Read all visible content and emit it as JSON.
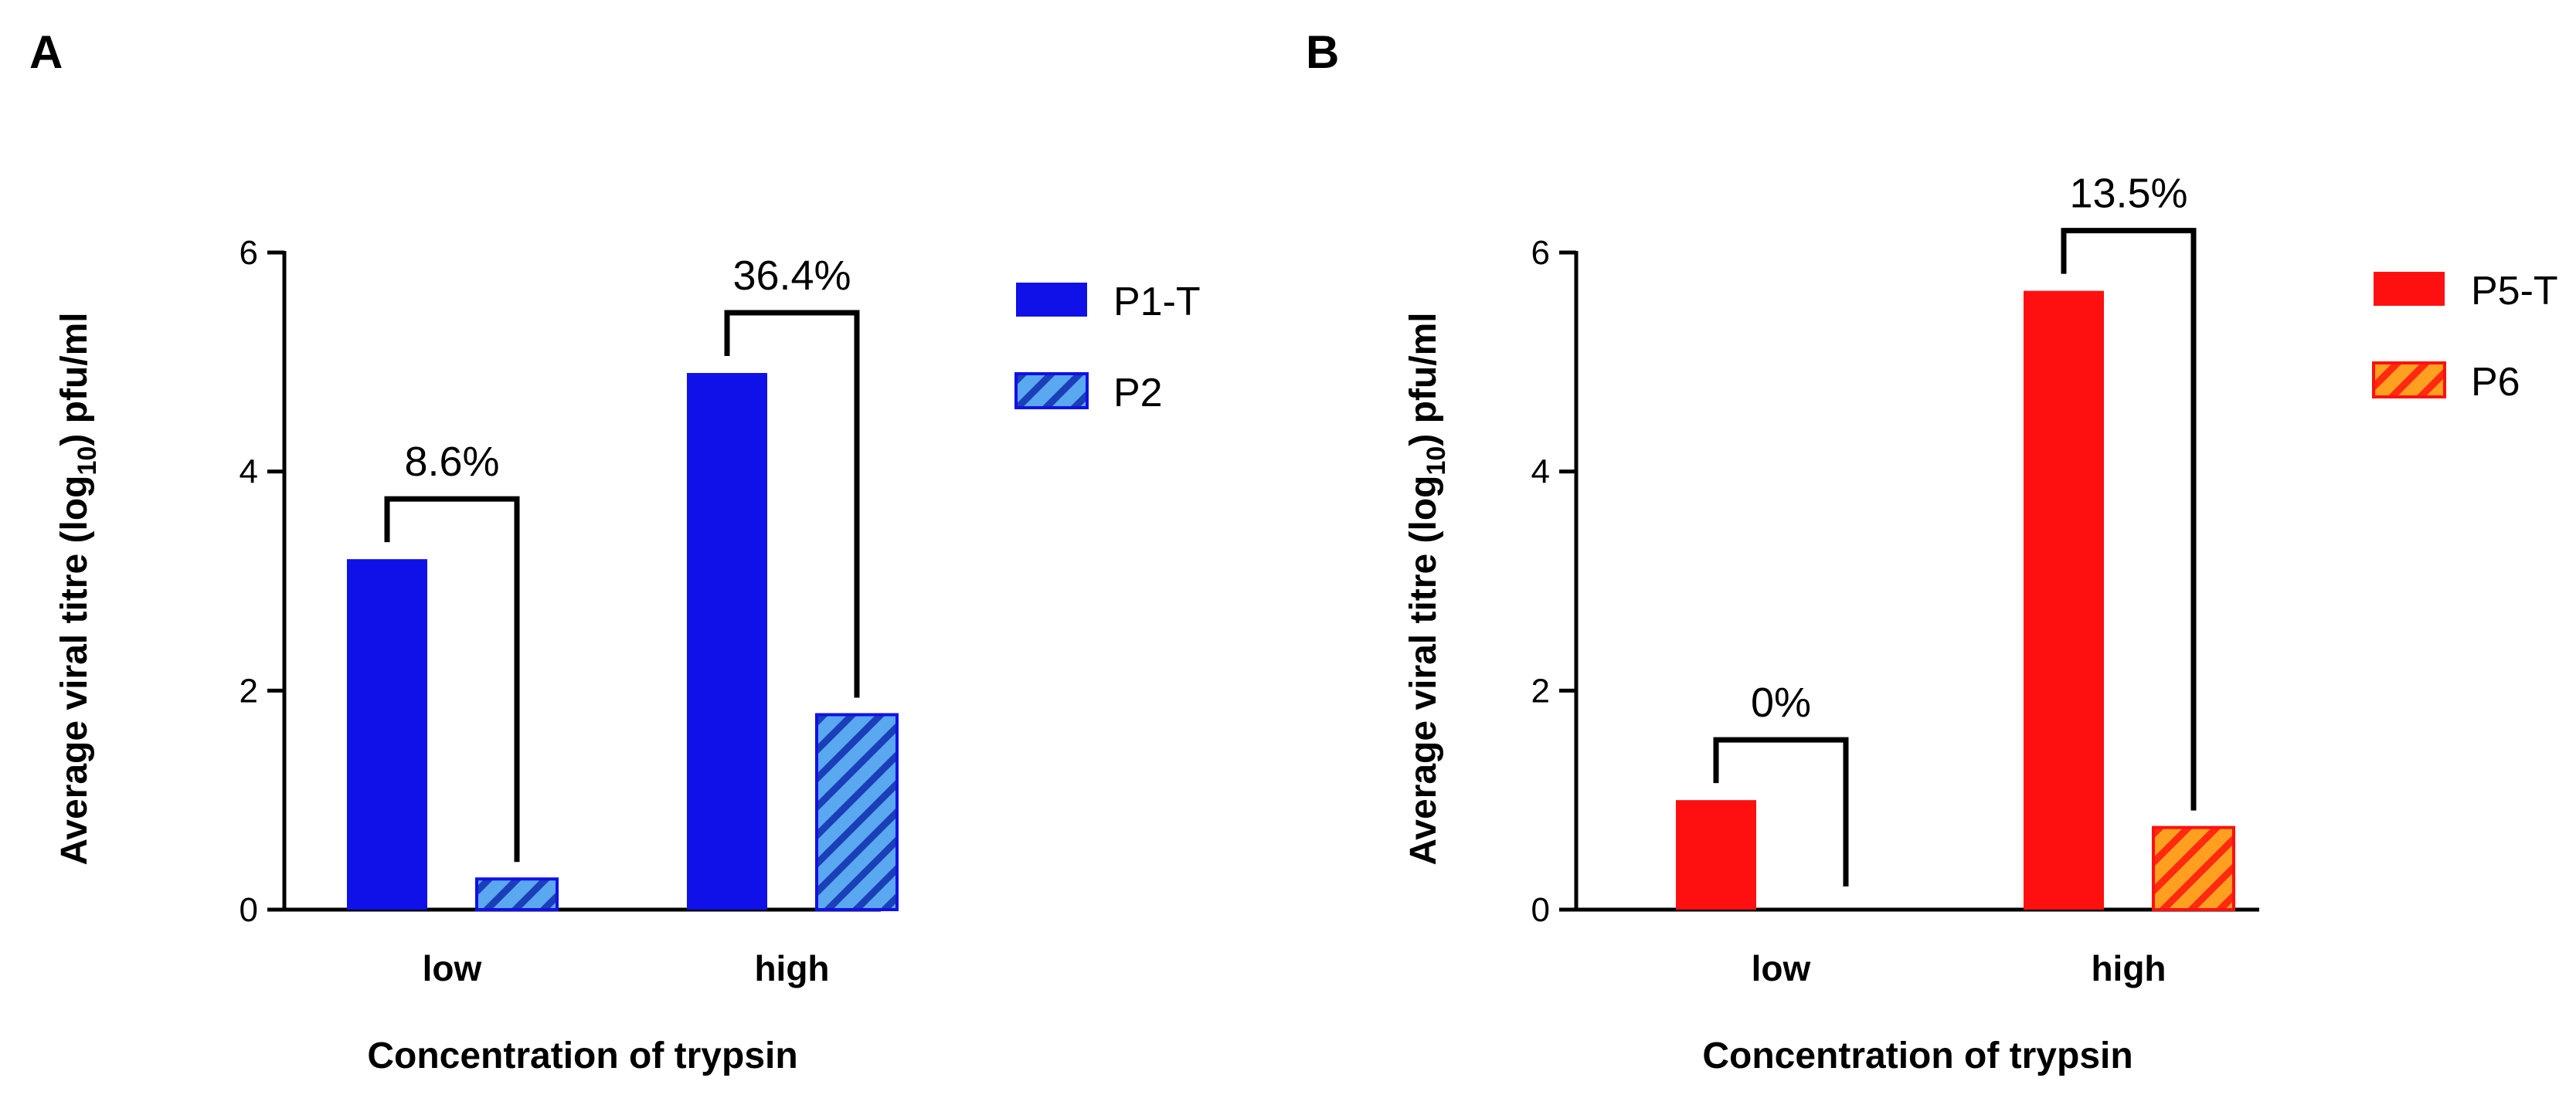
{
  "chart_data": [
    {
      "type": "bar",
      "panel": "A",
      "categories": [
        "low",
        "high"
      ],
      "series": [
        {
          "name": "P1-T",
          "values": [
            3.2,
            4.9
          ],
          "color": "#1010e8",
          "pattern": "solid"
        },
        {
          "name": "P2",
          "values": [
            0.28,
            1.78
          ],
          "color": "#1010e8",
          "pattern": "hatched",
          "hatch_color": "#5aa8f0"
        }
      ],
      "annotations": [
        {
          "category": "low",
          "label": "8.6%"
        },
        {
          "category": "high",
          "label": "36.4%"
        }
      ],
      "xlabel": "Concentration of trypsin",
      "ylabel_prefix": "Average viral titre (log",
      "ylabel_sub": "10",
      "ylabel_suffix": ") pfu/ml",
      "ylim": [
        0,
        6
      ],
      "yticks": [
        "0",
        "2",
        "4",
        "6"
      ],
      "legend_position": "top-right",
      "grid": false
    },
    {
      "type": "bar",
      "panel": "B",
      "categories": [
        "low",
        "high"
      ],
      "series": [
        {
          "name": "P5-T",
          "values": [
            1.0,
            5.65
          ],
          "color": "#ff1010",
          "pattern": "solid"
        },
        {
          "name": "P6",
          "values": [
            0.0,
            0.75
          ],
          "color": "#ff1010",
          "pattern": "hatched",
          "hatch_color": "#ffa020"
        }
      ],
      "annotations": [
        {
          "category": "low",
          "label": "0%"
        },
        {
          "category": "high",
          "label": "13.5%"
        }
      ],
      "xlabel": "Concentration of trypsin",
      "ylabel_prefix": "Average viral titre (log",
      "ylabel_sub": "10",
      "ylabel_suffix": ") pfu/ml",
      "ylim": [
        0,
        6
      ],
      "yticks": [
        "0",
        "2",
        "4",
        "6"
      ],
      "legend_position": "top-right",
      "grid": false
    }
  ]
}
